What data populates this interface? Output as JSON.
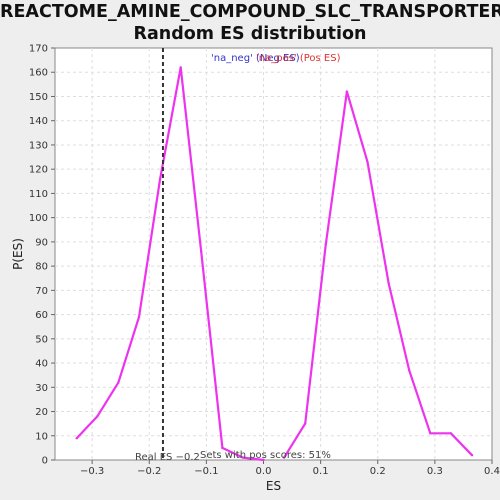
{
  "chart_data": {
    "type": "line",
    "title_line1": "REACTOME_AMINE_COMPOUND_SLC_TRANSPORTERS:",
    "title_line2": "Random ES distribution",
    "xlabel": "ES",
    "ylabel": "P(ES)",
    "xlim": [
      -0.365,
      0.4
    ],
    "ylim": [
      0,
      170
    ],
    "xticks": [
      -0.3,
      -0.2,
      -0.1,
      0.0,
      0.1,
      0.2,
      0.3,
      0.4
    ],
    "xtick_labels": [
      "−0.3",
      "−0.2",
      "−0.1",
      "0.0",
      "0.1",
      "0.2",
      "0.3",
      "0.4"
    ],
    "yticks": [
      0,
      10,
      20,
      30,
      40,
      50,
      60,
      70,
      80,
      90,
      100,
      110,
      120,
      130,
      140,
      150,
      160,
      170
    ],
    "grid": true,
    "series": [
      {
        "name": "'na_neg' (Neg ES)",
        "color": "#ee33ee",
        "x": [
          -0.327,
          -0.291,
          -0.254,
          -0.218,
          -0.181,
          -0.145,
          -0.109,
          -0.072,
          -0.036,
          0.0
        ],
        "y": [
          9,
          18,
          32,
          59,
          116,
          162,
          86,
          5,
          1,
          0
        ]
      },
      {
        "name": "'na_pos' (Pos ES)",
        "color": "#ee33ee",
        "x": [
          0.036,
          0.073,
          0.109,
          0.146,
          0.182,
          0.219,
          0.255,
          0.292,
          0.328,
          0.365
        ],
        "y": [
          1,
          15,
          89,
          152,
          123,
          73,
          37,
          11,
          11,
          2
        ]
      }
    ],
    "legend": {
      "placement": "top",
      "neg_label": "'na_neg' (Neg ES)",
      "pos_label": "'na_pos' (Pos ES)",
      "neg_color": "#3333cc",
      "pos_color": "#dd3333"
    },
    "real_es": {
      "value": -0.176,
      "label": "Real ES −0.2"
    },
    "annotation": "Sets with pos scores: 51%"
  }
}
